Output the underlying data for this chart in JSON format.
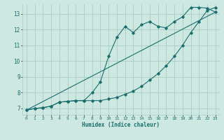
{
  "xlabel": "Humidex (Indice chaleur)",
  "bg_color": "#cce8e0",
  "grid_color": "#aaccc4",
  "line_color": "#1a6e6e",
  "xlim": [
    -0.5,
    23.5
  ],
  "ylim": [
    6.6,
    13.6
  ],
  "xticks": [
    0,
    1,
    2,
    3,
    4,
    5,
    6,
    7,
    8,
    9,
    10,
    11,
    12,
    13,
    14,
    15,
    16,
    17,
    18,
    19,
    20,
    21,
    22,
    23
  ],
  "yticks": [
    7,
    8,
    9,
    10,
    11,
    12,
    13
  ],
  "line1_x": [
    0,
    1,
    2,
    3,
    4,
    5,
    6,
    7,
    8,
    9,
    10,
    11,
    12,
    13,
    14,
    15,
    16,
    17,
    18,
    19,
    20,
    21,
    22,
    23
  ],
  "line1_y": [
    6.9,
    7.0,
    7.05,
    7.15,
    7.4,
    7.45,
    7.5,
    7.5,
    8.0,
    8.7,
    10.3,
    11.5,
    12.2,
    11.8,
    12.3,
    12.5,
    12.2,
    12.1,
    12.5,
    12.8,
    13.4,
    13.4,
    13.35,
    13.1
  ],
  "line2_x": [
    0,
    1,
    2,
    3,
    4,
    5,
    6,
    7,
    8,
    9,
    10,
    11,
    12,
    13,
    14,
    15,
    16,
    17,
    18,
    19,
    20,
    21,
    22,
    23
  ],
  "line2_y": [
    6.9,
    7.0,
    7.05,
    7.15,
    7.4,
    7.45,
    7.5,
    7.5,
    7.5,
    7.5,
    7.6,
    7.7,
    7.9,
    8.1,
    8.4,
    8.8,
    9.2,
    9.7,
    10.3,
    11.0,
    11.8,
    12.5,
    13.2,
    13.4
  ],
  "line3_x": [
    0,
    23
  ],
  "line3_y": [
    6.9,
    13.1
  ]
}
